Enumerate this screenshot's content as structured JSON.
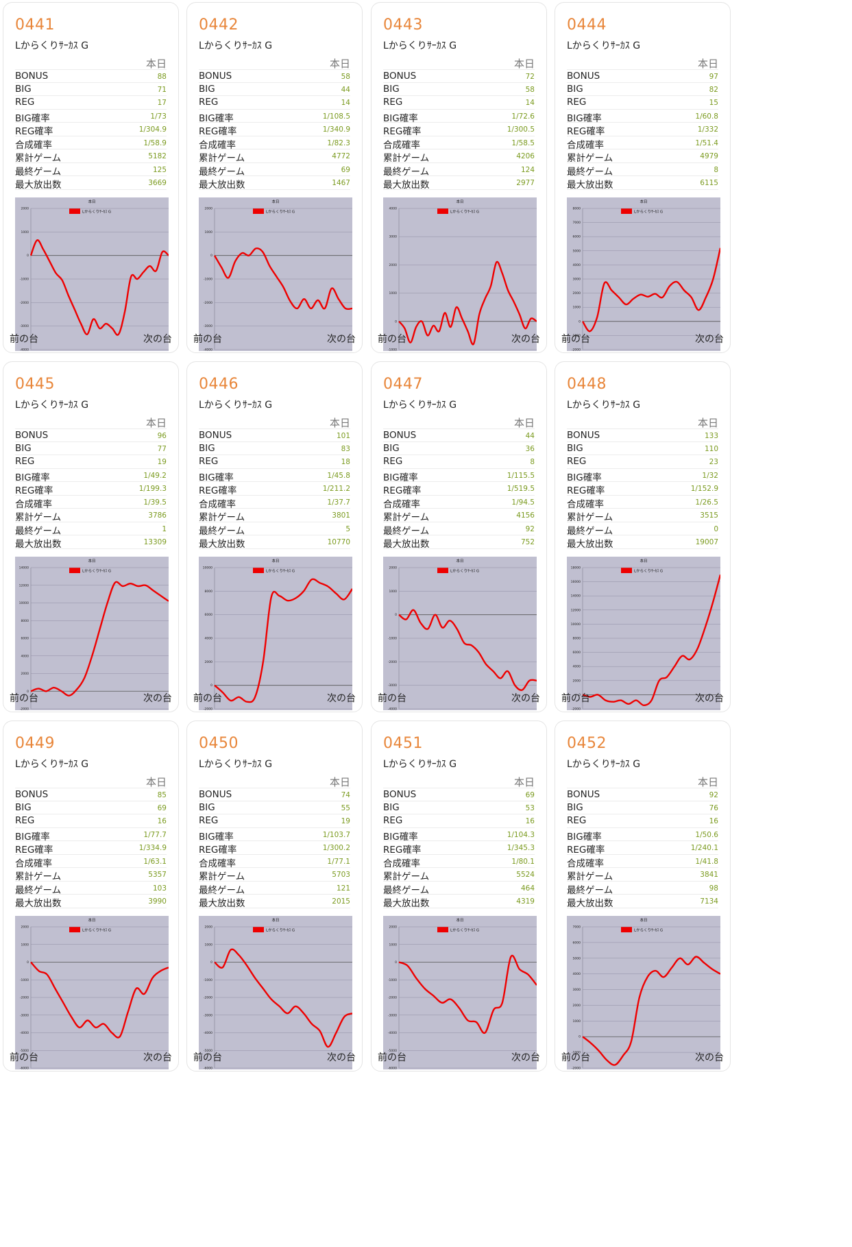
{
  "labels": {
    "period": "本日",
    "prev": "前の台",
    "next": "次の台",
    "stat_names": [
      "BONUS",
      "BIG",
      "REG",
      "BIG確率",
      "REG確率",
      "合成確率",
      "累計ゲーム",
      "最終ゲーム",
      "最大放出数"
    ]
  },
  "colors": {
    "id": "#e8863a",
    "value": "#7a9a1e",
    "line": "#ee0000",
    "plot_bg": "#c0bfd0"
  },
  "machines": [
    {
      "id": "0441",
      "model": "Lからくりｻｰｶｽ G",
      "stats": [
        "88",
        "71",
        "17",
        "1/73",
        "1/304.9",
        "1/58.9",
        "5182",
        "125",
        "3669"
      ],
      "chart_data": {
        "type": "line",
        "title": "本日",
        "legend": "Lからくりｻｰｶｽ G",
        "ylim": [
          -4000,
          2000
        ],
        "yticks": [
          2000,
          1000,
          0,
          -1000,
          -2000,
          -3000,
          -4000
        ],
        "y": [
          0,
          650,
          250,
          -250,
          -750,
          -1050,
          -1700,
          -2300,
          -2900,
          -3350,
          -2700,
          -3100,
          -2900,
          -3100,
          -3350,
          -2400,
          -900,
          -1000,
          -700,
          -450,
          -650,
          150,
          0
        ]
      }
    },
    {
      "id": "0442",
      "model": "Lからくりｻｰｶｽ G",
      "stats": [
        "58",
        "44",
        "14",
        "1/108.5",
        "1/340.9",
        "1/82.3",
        "4772",
        "69",
        "1467"
      ],
      "chart_data": {
        "type": "line",
        "title": "本日",
        "legend": "Lからくりｻｰｶｽ G",
        "ylim": [
          -4000,
          2000
        ],
        "yticks": [
          2000,
          1000,
          0,
          -1000,
          -2000,
          -3000,
          -4000
        ],
        "y": [
          0,
          -500,
          -950,
          -250,
          100,
          0,
          300,
          150,
          -450,
          -900,
          -1350,
          -1950,
          -2250,
          -1850,
          -2250,
          -1900,
          -2250,
          -1400,
          -1850,
          -2250,
          -2250
        ]
      }
    },
    {
      "id": "0443",
      "model": "Lからくりｻｰｶｽ G",
      "stats": [
        "72",
        "58",
        "14",
        "1/72.6",
        "1/300.5",
        "1/58.5",
        "4206",
        "124",
        "2977"
      ],
      "chart_data": {
        "type": "line",
        "title": "本日",
        "legend": "Lからくりｻｰｶｽ G",
        "ylim": [
          -1000,
          4000
        ],
        "yticks": [
          4000,
          3000,
          2000,
          1000,
          0,
          -1000
        ],
        "y": [
          0,
          -250,
          -750,
          -200,
          0,
          -500,
          -150,
          -350,
          300,
          -200,
          500,
          100,
          -350,
          -800,
          250,
          800,
          1250,
          2100,
          1700,
          1100,
          700,
          250,
          -250,
          100,
          0
        ]
      }
    },
    {
      "id": "0444",
      "model": "Lからくりｻｰｶｽ G",
      "stats": [
        "97",
        "82",
        "15",
        "1/60.8",
        "1/332",
        "1/51.4",
        "4979",
        "8",
        "6115"
      ],
      "chart_data": {
        "type": "line",
        "title": "本日",
        "legend": "Lからくりｻｰｶｽ G",
        "ylim": [
          -2000,
          8000
        ],
        "yticks": [
          8000,
          7000,
          6000,
          5000,
          4000,
          3000,
          2000,
          1000,
          0,
          -1000,
          -2000
        ],
        "y": [
          0,
          -700,
          300,
          2700,
          2200,
          1700,
          1200,
          1600,
          1900,
          1750,
          1950,
          1700,
          2500,
          2800,
          2200,
          1700,
          800,
          1700,
          3000,
          5200
        ]
      }
    },
    {
      "id": "0445",
      "model": "Lからくりｻｰｶｽ G",
      "stats": [
        "96",
        "77",
        "19",
        "1/49.2",
        "1/199.3",
        "1/39.5",
        "3786",
        "1",
        "13309"
      ],
      "chart_data": {
        "type": "line",
        "title": "本日",
        "legend": "Lからくりｻｰｶｽ G",
        "ylim": [
          -2000,
          14000
        ],
        "yticks": [
          14000,
          12000,
          10000,
          8000,
          6000,
          4000,
          2000,
          0,
          -2000
        ],
        "y": [
          0,
          300,
          0,
          400,
          0,
          -500,
          200,
          1500,
          4000,
          7000,
          10000,
          12300,
          11900,
          12200,
          11900,
          12000,
          11400,
          10800,
          10200
        ]
      }
    },
    {
      "id": "0446",
      "model": "Lからくりｻｰｶｽ G",
      "stats": [
        "101",
        "83",
        "18",
        "1/45.8",
        "1/211.2",
        "1/37.7",
        "3801",
        "5",
        "10770"
      ],
      "chart_data": {
        "type": "line",
        "title": "本日",
        "legend": "Lからくりｻｰｶｽ G",
        "ylim": [
          -2000,
          10000
        ],
        "yticks": [
          10000,
          8000,
          6000,
          4000,
          2000,
          0,
          -2000
        ],
        "y": [
          0,
          -600,
          -1300,
          -1000,
          -1400,
          -1000,
          2000,
          7500,
          7600,
          7200,
          7400,
          8000,
          9000,
          8700,
          8400,
          7800,
          7300,
          8200
        ]
      }
    },
    {
      "id": "0447",
      "model": "Lからくりｻｰｶｽ G",
      "stats": [
        "44",
        "36",
        "8",
        "1/115.5",
        "1/519.5",
        "1/94.5",
        "4156",
        "92",
        "752"
      ],
      "chart_data": {
        "type": "line",
        "title": "本日",
        "legend": "Lからくりｻｰｶｽ G",
        "ylim": [
          -4000,
          2000
        ],
        "yticks": [
          2000,
          1000,
          0,
          -1000,
          -2000,
          -3000,
          -4000
        ],
        "y": [
          0,
          -200,
          200,
          -350,
          -600,
          0,
          -550,
          -250,
          -600,
          -1200,
          -1300,
          -1600,
          -2100,
          -2400,
          -2700,
          -2400,
          -3000,
          -3200,
          -2800,
          -2800
        ]
      }
    },
    {
      "id": "0448",
      "model": "Lからくりｻｰｶｽ G",
      "stats": [
        "133",
        "110",
        "23",
        "1/32",
        "1/152.9",
        "1/26.5",
        "3515",
        "0",
        "19007"
      ],
      "chart_data": {
        "type": "line",
        "title": "本日",
        "legend": "Lからくりｻｰｶｽ G",
        "ylim": [
          -2000,
          18000
        ],
        "yticks": [
          18000,
          16000,
          14000,
          12000,
          10000,
          8000,
          6000,
          4000,
          2000,
          0,
          -2000
        ],
        "y": [
          0,
          -300,
          0,
          -800,
          -1000,
          -800,
          -1300,
          -800,
          -1500,
          -800,
          2000,
          2500,
          4000,
          5500,
          5000,
          6500,
          9500,
          13000,
          17000
        ]
      }
    },
    {
      "id": "0449",
      "model": "Lからくりｻｰｶｽ G",
      "stats": [
        "85",
        "69",
        "16",
        "1/77.7",
        "1/334.9",
        "1/63.1",
        "5357",
        "103",
        "3990"
      ],
      "chart_data": {
        "type": "line",
        "title": "本日",
        "legend": "Lからくりｻｰｶｽ G",
        "ylim": [
          -6000,
          2000
        ],
        "yticks": [
          2000,
          1000,
          0,
          -1000,
          -2000,
          -3000,
          -4000,
          -5000,
          -6000
        ],
        "y": [
          0,
          -500,
          -700,
          -1500,
          -2300,
          -3100,
          -3700,
          -3300,
          -3700,
          -3500,
          -4000,
          -4200,
          -2800,
          -1500,
          -1800,
          -900,
          -500,
          -300
        ]
      }
    },
    {
      "id": "0450",
      "model": "Lからくりｻｰｶｽ G",
      "stats": [
        "74",
        "55",
        "19",
        "1/103.7",
        "1/300.2",
        "1/77.1",
        "5703",
        "121",
        "2015"
      ],
      "chart_data": {
        "type": "line",
        "title": "本日",
        "legend": "Lからくりｻｰｶｽ G",
        "ylim": [
          -6000,
          2000
        ],
        "yticks": [
          2000,
          1000,
          0,
          -1000,
          -2000,
          -3000,
          -4000,
          -5000,
          -6000
        ],
        "y": [
          0,
          -300,
          700,
          400,
          -200,
          -900,
          -1500,
          -2100,
          -2500,
          -2900,
          -2500,
          -2900,
          -3500,
          -3900,
          -4800,
          -4000,
          -3100,
          -2900
        ]
      }
    },
    {
      "id": "0451",
      "model": "Lからくりｻｰｶｽ G",
      "stats": [
        "69",
        "53",
        "16",
        "1/104.3",
        "1/345.3",
        "1/80.1",
        "5524",
        "464",
        "4319"
      ],
      "chart_data": {
        "type": "line",
        "title": "本日",
        "legend": "Lからくりｻｰｶｽ G",
        "ylim": [
          -6000,
          2000
        ],
        "yticks": [
          2000,
          1000,
          0,
          -1000,
          -2000,
          -3000,
          -4000,
          -5000,
          -6000
        ],
        "y": [
          0,
          -200,
          -900,
          -1500,
          -1900,
          -2300,
          -2100,
          -2600,
          -3300,
          -3400,
          -4000,
          -2700,
          -2300,
          300,
          -400,
          -700,
          -1300
        ]
      }
    },
    {
      "id": "0452",
      "model": "Lからくりｻｰｶｽ G",
      "stats": [
        "92",
        "76",
        "16",
        "1/50.6",
        "1/240.1",
        "1/41.8",
        "3841",
        "98",
        "7134"
      ],
      "chart_data": {
        "type": "line",
        "title": "本日",
        "legend": "Lからくりｻｰｶｽ G",
        "ylim": [
          -2000,
          7000
        ],
        "yticks": [
          7000,
          6000,
          5000,
          4000,
          3000,
          2000,
          1000,
          0,
          -1000,
          -2000
        ],
        "y": [
          0,
          -400,
          -900,
          -1500,
          -1800,
          -1200,
          -300,
          2500,
          3800,
          4200,
          3800,
          4400,
          5000,
          4600,
          5100,
          4700,
          4300,
          4000
        ]
      }
    }
  ]
}
